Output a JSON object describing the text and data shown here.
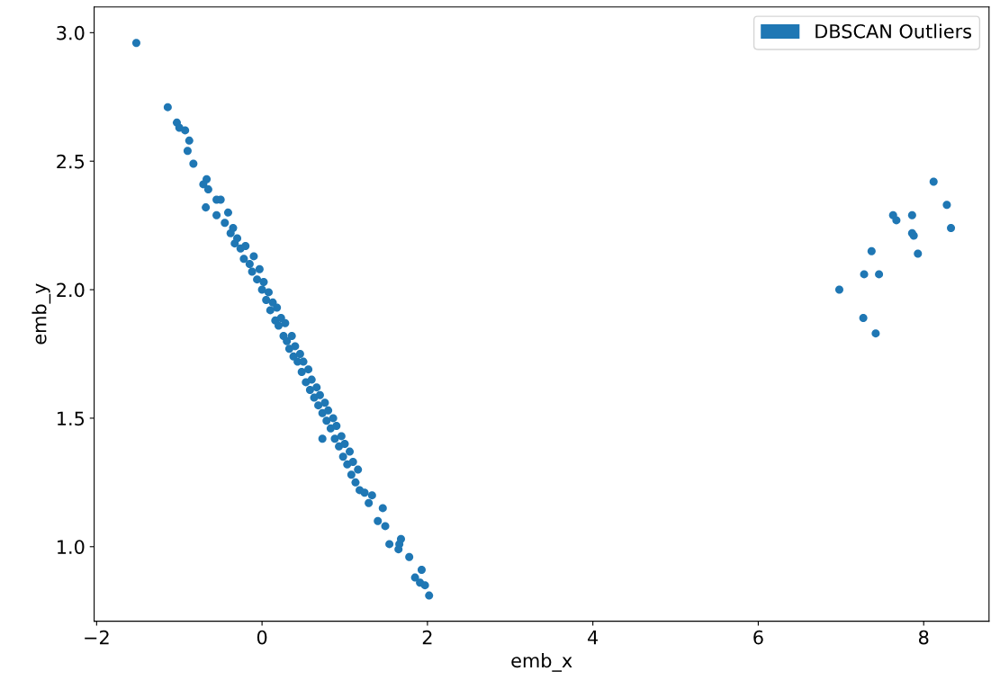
{
  "chart_data": {
    "type": "scatter",
    "xlabel": "emb_x",
    "ylabel": "emb_y",
    "xlim": [
      -2.03,
      8.79
    ],
    "ylim": [
      0.71,
      3.1
    ],
    "xticks": [
      {
        "value": -2,
        "label": "−2"
      },
      0,
      2,
      4,
      6,
      8
    ],
    "yticks": [
      {
        "value": 1.0,
        "label": "1.0"
      },
      {
        "value": 1.5,
        "label": "1.5"
      },
      {
        "value": 2.0,
        "label": "2.0"
      },
      {
        "value": 2.5,
        "label": "2.5"
      },
      {
        "value": 3.0,
        "label": "3.0"
      }
    ],
    "grid": false,
    "legend": "top right",
    "marker": "circle",
    "series": [
      {
        "name": "DBSCAN Outliers",
        "color": "#1f77b4",
        "x": [
          -1.52,
          -1.14,
          -1.03,
          -1.0,
          -0.93,
          -0.88,
          -0.9,
          -0.83,
          -0.67,
          -0.71,
          -0.65,
          -0.68,
          -0.55,
          -0.5,
          -0.55,
          -0.41,
          -0.45,
          -0.38,
          -0.35,
          -0.33,
          -0.3,
          -0.26,
          -0.22,
          -0.2,
          -0.15,
          -0.12,
          -0.1,
          -0.06,
          -0.03,
          0.0,
          0.02,
          0.05,
          0.08,
          0.1,
          0.13,
          0.16,
          0.18,
          0.2,
          0.23,
          0.26,
          0.28,
          0.3,
          0.33,
          0.36,
          0.38,
          0.4,
          0.43,
          0.46,
          0.48,
          0.5,
          0.53,
          0.56,
          0.58,
          0.6,
          0.63,
          0.66,
          0.68,
          0.7,
          0.73,
          0.76,
          0.78,
          0.8,
          0.83,
          0.86,
          0.88,
          0.9,
          0.93,
          0.96,
          0.98,
          1.0,
          1.03,
          1.06,
          1.08,
          1.1,
          1.13,
          1.16,
          1.18,
          0.73,
          1.24,
          1.29,
          1.33,
          1.46,
          1.4,
          1.49,
          1.54,
          1.66,
          1.68,
          1.65,
          1.78,
          1.85,
          1.93,
          1.91,
          1.97,
          2.02,
          6.98,
          7.27,
          7.42,
          7.28,
          7.46,
          7.37,
          7.93,
          7.86,
          7.88,
          7.63,
          7.67,
          7.86,
          8.12,
          8.28,
          8.33
        ],
        "values": [
          2.96,
          2.71,
          2.65,
          2.63,
          2.62,
          2.58,
          2.54,
          2.49,
          2.43,
          2.41,
          2.39,
          2.32,
          2.35,
          2.35,
          2.29,
          2.3,
          2.26,
          2.22,
          2.24,
          2.18,
          2.2,
          2.16,
          2.12,
          2.17,
          2.1,
          2.07,
          2.13,
          2.04,
          2.08,
          2.0,
          2.03,
          1.96,
          1.99,
          1.92,
          1.95,
          1.88,
          1.93,
          1.86,
          1.89,
          1.82,
          1.87,
          1.8,
          1.77,
          1.82,
          1.74,
          1.78,
          1.72,
          1.75,
          1.68,
          1.72,
          1.64,
          1.69,
          1.61,
          1.65,
          1.58,
          1.62,
          1.55,
          1.59,
          1.52,
          1.56,
          1.49,
          1.53,
          1.46,
          1.5,
          1.42,
          1.47,
          1.39,
          1.43,
          1.35,
          1.4,
          1.32,
          1.37,
          1.28,
          1.33,
          1.25,
          1.3,
          1.22,
          1.42,
          1.21,
          1.17,
          1.2,
          1.15,
          1.1,
          1.08,
          1.01,
          1.01,
          1.03,
          0.99,
          0.96,
          0.88,
          0.91,
          0.86,
          0.85,
          0.81,
          2.0,
          1.89,
          1.83,
          2.06,
          2.06,
          2.15,
          2.14,
          2.22,
          2.21,
          2.29,
          2.27,
          2.29,
          2.42,
          2.33,
          2.24
        ]
      }
    ]
  }
}
